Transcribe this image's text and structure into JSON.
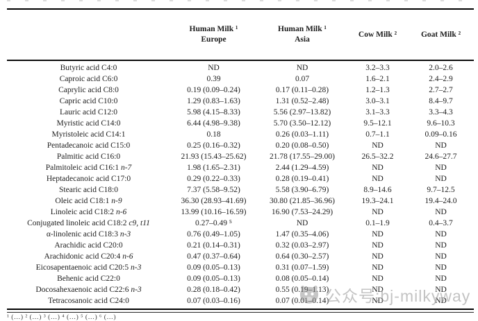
{
  "table": {
    "columns": [
      {
        "line1": "Human Milk ¹",
        "line2": "Europe"
      },
      {
        "line1": "Human Milk ¹",
        "line2": "Asia"
      },
      {
        "line1": "Cow Milk ²",
        "line2": ""
      },
      {
        "line1": "Goat Milk ²",
        "line2": ""
      }
    ],
    "rows": [
      {
        "label": "Butyric acid C4:0",
        "italic": "",
        "values": [
          "ND",
          "ND",
          "3.2–3.3",
          "2.0–2.6"
        ]
      },
      {
        "label": "Caproic acid C6:0",
        "italic": "",
        "values": [
          "0.39",
          "0.07",
          "1.6–2.1",
          "2.4–2.9"
        ]
      },
      {
        "label": "Caprylic acid C8:0",
        "italic": "",
        "values": [
          "0.19 (0.09–0.24)",
          "0.17 (0.11–0.28)",
          "1.2–1.3",
          "2.7–2.7"
        ]
      },
      {
        "label": "Capric acid C10:0",
        "italic": "",
        "values": [
          "1.29 (0.83–1.63)",
          "1.31 (0.52–2.48)",
          "3.0–3.1",
          "8.4–9.7"
        ]
      },
      {
        "label": "Lauric acid C12:0",
        "italic": "",
        "values": [
          "5.98 (4.15–8.33)",
          "5.56 (2.97–13.82)",
          "3.1–3.3",
          "3.3–4.3"
        ]
      },
      {
        "label": "Myristic acid C14:0",
        "italic": "",
        "values": [
          "6.44 (4.98–9.38)",
          "5.70 (3.50–12.12)",
          "9.5–12.1",
          "9.6–10.3"
        ]
      },
      {
        "label": "Myristoleic acid C14:1",
        "italic": "",
        "values": [
          "0.18",
          "0.26 (0.03–1.11)",
          "0.7–1.1",
          "0.09–0.16"
        ]
      },
      {
        "label": "Pentadecanoic acid C15:0",
        "italic": "",
        "values": [
          "0.25 (0.16–0.32)",
          "0.20 (0.08–0.50)",
          "ND",
          "ND"
        ]
      },
      {
        "label": "Palmitic acid C16:0",
        "italic": "",
        "values": [
          "21.93 (15.43–25.62)",
          "21.78 (17.55–29.00)",
          "26.5–32.2",
          "24.6–27.7"
        ]
      },
      {
        "label": "Palmitoleic acid C16:1",
        "italic": "n-7",
        "values": [
          "1.98 (1.65–2.31)",
          "2.44 (1.29–4.59)",
          "ND",
          "ND"
        ]
      },
      {
        "label": "Heptadecanoic acid C17:0",
        "italic": "",
        "values": [
          "0.29 (0.22–0.33)",
          "0.28 (0.19–0.41)",
          "ND",
          "ND"
        ]
      },
      {
        "label": "Stearic acid C18:0",
        "italic": "",
        "values": [
          "7.37 (5.58–9.52)",
          "5.58 (3.90–6.79)",
          "8.9–14.6",
          "9.7–12.5"
        ]
      },
      {
        "label": "Oleic acid C18:1",
        "italic": "n-9",
        "values": [
          "36.30 (28.93–41.69)",
          "30.80 (21.85–36.96)",
          "19.3–24.1",
          "19.4–24.0"
        ]
      },
      {
        "label": "Linoleic acid C18:2",
        "italic": "n-6",
        "values": [
          "13.99 (10.16–16.59)",
          "16.90 (7.53–24.29)",
          "ND",
          "ND"
        ]
      },
      {
        "label": "Conjugated linoleic acid C18:2",
        "italic": "c9, t11",
        "values": [
          "0.27–0.49 ⁵",
          "ND",
          "0.1–1.9",
          "0.4–3.7"
        ]
      },
      {
        "label": "α-linolenic acid C18:3",
        "italic": "n-3",
        "values": [
          "0.76 (0.49–1.05)",
          "1.47 (0.35–4.06)",
          "ND",
          "ND"
        ]
      },
      {
        "label": "Arachidic acid C20:0",
        "italic": "",
        "values": [
          "0.21 (0.14–0.31)",
          "0.32 (0.03–2.97)",
          "ND",
          "ND"
        ]
      },
      {
        "label": "Arachidonic acid C20:4",
        "italic": "n-6",
        "values": [
          "0.47 (0.37–0.64)",
          "0.64 (0.30–2.57)",
          "ND",
          "ND"
        ]
      },
      {
        "label": "Eicosapentaenoic acid C20:5",
        "italic": "n-3",
        "values": [
          "0.09 (0.05–0.13)",
          "0.31 (0.07–1.59)",
          "ND",
          "ND"
        ]
      },
      {
        "label": "Behenic acid C22:0",
        "italic": "",
        "values": [
          "0.09 (0.05–0.13)",
          "0.08 (0.05–0.14)",
          "ND",
          "ND"
        ]
      },
      {
        "label": "Docosahexaenoic acid C22:6",
        "italic": "n-3",
        "values": [
          "0.28 (0.18–0.42)",
          "0.55 (0.19–1.13)",
          "ND",
          "ND"
        ]
      },
      {
        "label": "Tetracosanoic acid C24:0",
        "italic": "",
        "values": [
          "0.07 (0.03–0.16)",
          "0.07 (0.01–0.14)",
          "ND",
          "ND"
        ]
      }
    ]
  },
  "footnote_fragment": "¹ (…)  ² (…)  ³ (…)          ⁴ (…)  ⁵ (…)  ⁶ (…)",
  "watermark": {
    "text": "公众号:bj-milkyway"
  }
}
